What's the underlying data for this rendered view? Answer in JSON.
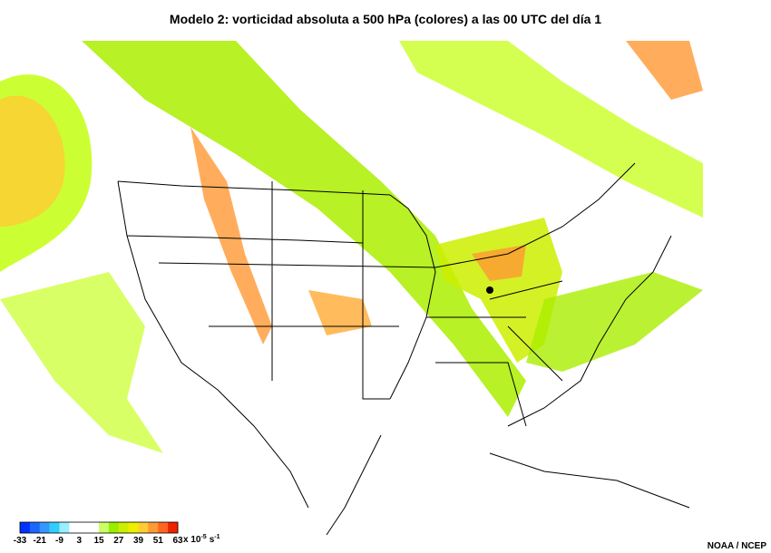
{
  "title": "Modelo 2: vorticidad absoluta a 500 hPa (colores) a las 00 UTC del día 1",
  "legend": {
    "ticks": [
      -33,
      -21,
      -9,
      3,
      15,
      27,
      39,
      51,
      63
    ],
    "colors": [
      "#0033ff",
      "#1a66ff",
      "#3399ff",
      "#33ccff",
      "#99eeff",
      "#ffffff",
      "#ffffff",
      "#ffffff",
      "#ccff66",
      "#99ee00",
      "#ccee00",
      "#eeee00",
      "#ffcc33",
      "#ff9933",
      "#ff6622",
      "#ee2200"
    ],
    "unit_prefix": "x 10",
    "unit_exponent": "-5",
    "unit_base": "s",
    "unit_base_exponent": "-1"
  },
  "credit": "NOAA / NCEP"
}
